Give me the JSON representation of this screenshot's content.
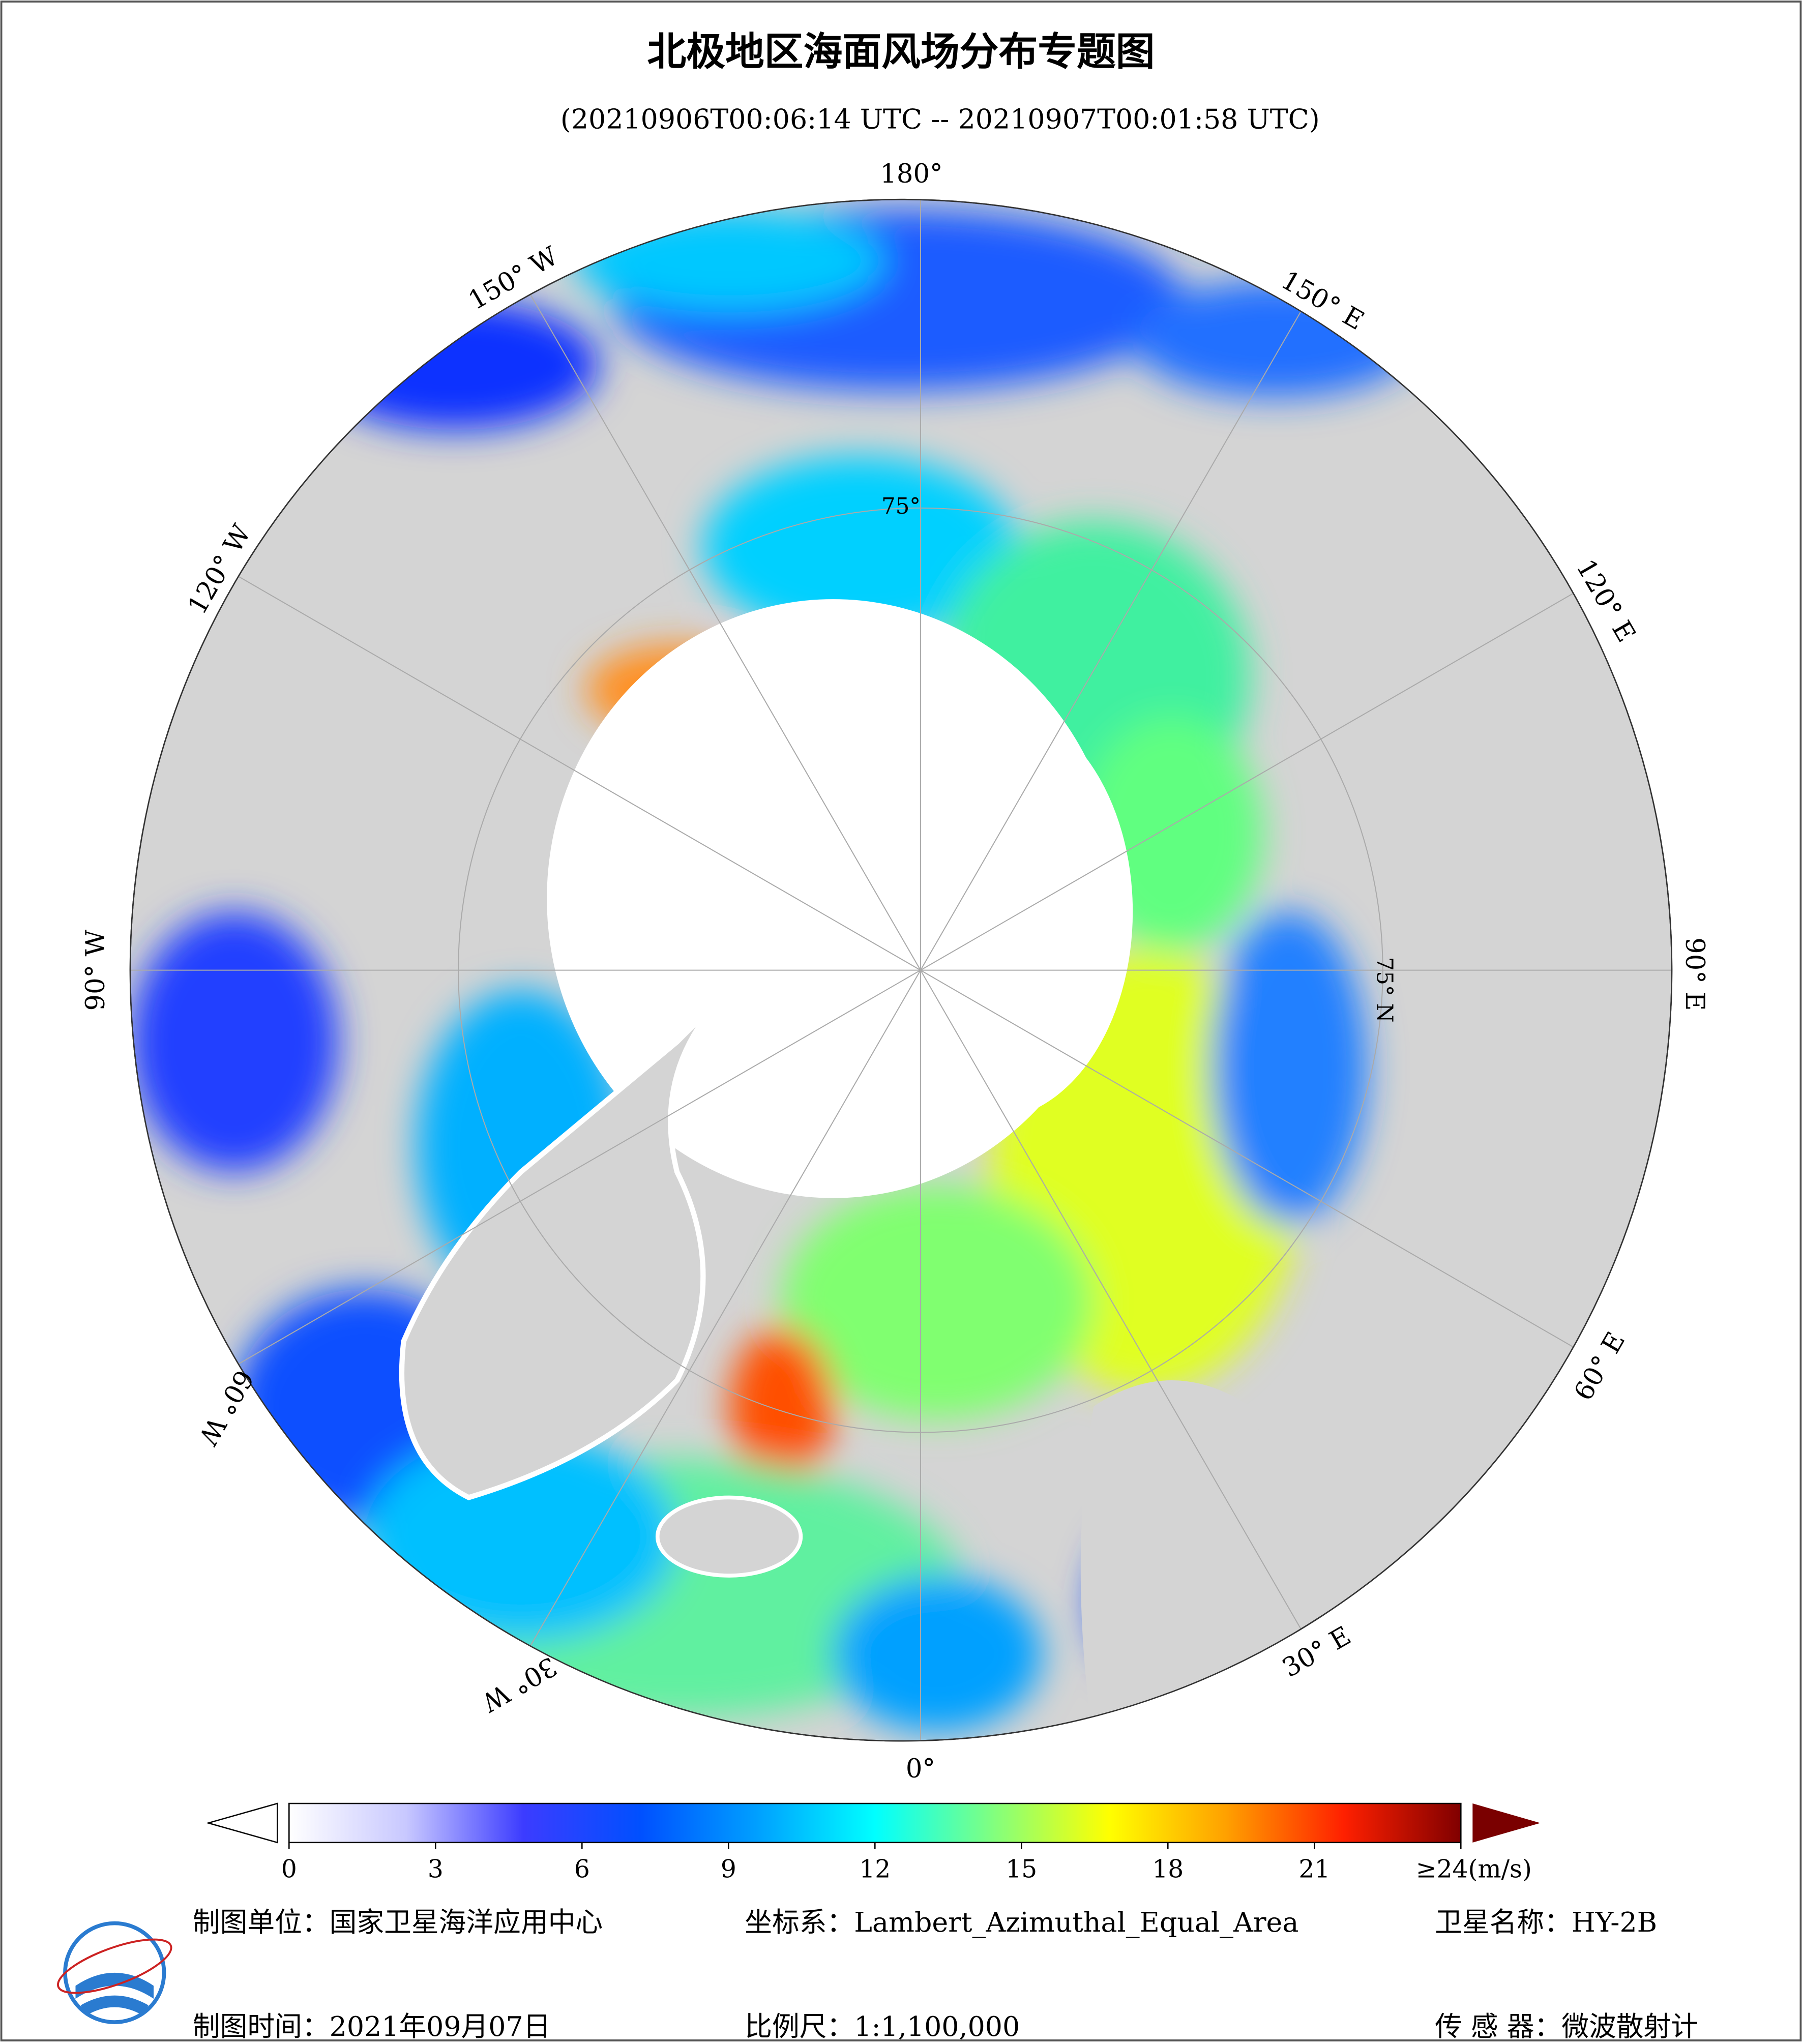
{
  "header": {
    "title": "北极地区海面风场分布专题图",
    "subtitle": "(20210906T00:06:14 UTC -- 20210907T00:01:58 UTC)"
  },
  "map": {
    "labels": [
      "180°",
      "150° W",
      "120° W",
      "90° W",
      "60° W",
      "30° W",
      "0°",
      "30° E",
      "60° E",
      "90° E",
      "120° E",
      "150° E",
      "75° N",
      "75°"
    ]
  },
  "colorbar": {
    "colors": [
      "#ffffff",
      "#c8c8ff",
      "#3c3cff",
      "#0050ff",
      "#00a0ff",
      "#00ffff",
      "#80ff80",
      "#ffff00",
      "#ffa000",
      "#ff2000",
      "#800000"
    ],
    "ticks": [
      0,
      3,
      6,
      9,
      12,
      15,
      18,
      21,
      {
        "value": 24,
        "label": "≥24(m/s)"
      }
    ]
  },
  "footer": {
    "unit": "制图单位：国家卫星海洋应用中心",
    "projection": "坐标系：Lambert_Azimuthal_Equal_Area",
    "satellite": "卫星名称：HY-2B",
    "date": "制图时间：2021年09月07日",
    "scale": "比例尺：1:1,100,000",
    "sensor": "传 感 器：微波散射计"
  }
}
